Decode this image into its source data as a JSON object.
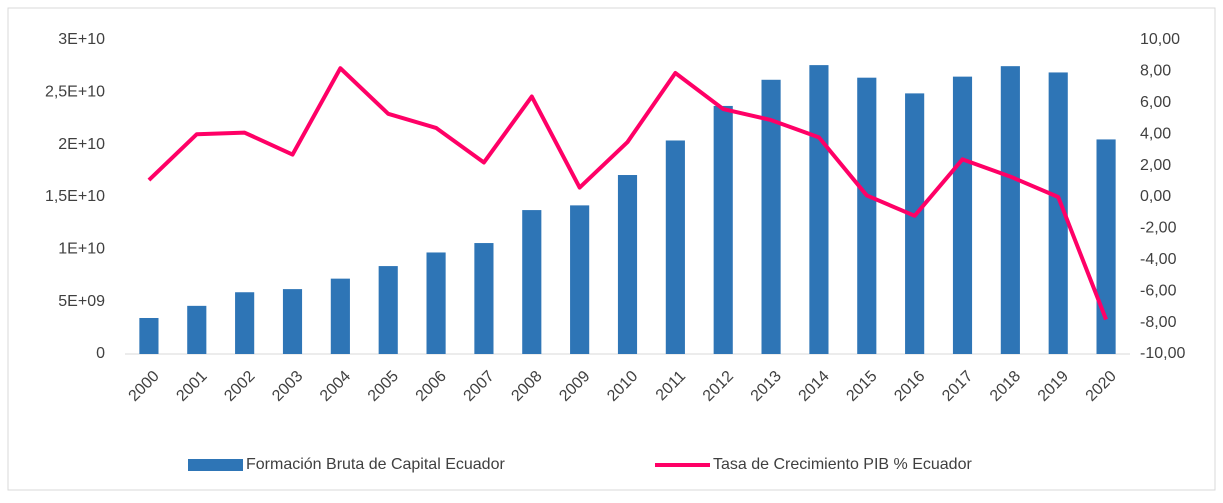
{
  "chart_data": {
    "type": "bar-line",
    "categories": [
      "2000",
      "2001",
      "2002",
      "2003",
      "2004",
      "2005",
      "2006",
      "2007",
      "2008",
      "2009",
      "2010",
      "2011",
      "2012",
      "2013",
      "2014",
      "2015",
      "2016",
      "2017",
      "2018",
      "2019",
      "2020"
    ],
    "series": [
      {
        "name": "Formación Bruta de Capital Ecuador",
        "color": "#2e75b6",
        "type": "bar",
        "values": [
          3440000000,
          4600000000,
          5900000000,
          6200000000,
          7200000000,
          8400000000,
          9700000000,
          10600000000,
          13750000000,
          14200000000,
          17100000000,
          20400000000,
          23700000000,
          26200000000,
          27600000000,
          26400000000,
          24900000000,
          26500000000,
          27500000000,
          26900000000,
          20500000000
        ]
      },
      {
        "name": "Tasa de Crecimiento PIB % Ecuador",
        "color": "#ff0066",
        "type": "line",
        "axis": "y2",
        "values": [
          1.08,
          4.0,
          4.1,
          2.7,
          8.2,
          5.3,
          4.4,
          2.2,
          6.4,
          0.6,
          3.5,
          7.9,
          5.6,
          4.9,
          3.8,
          0.1,
          -1.2,
          2.4,
          1.3,
          0.0,
          -7.8
        ]
      }
    ],
    "ylim": [
      0,
      30000000000
    ],
    "yticks": [
      0,
      {
        "value": 5000000000,
        "label": "5E+09"
      },
      {
        "value": 10000000000,
        "label": "1E+10"
      },
      {
        "value": 15000000000,
        "label": "1,5E+10"
      },
      {
        "value": 20000000000,
        "label": "2E+10"
      },
      {
        "value": 25000000000,
        "label": "2,5E+10"
      },
      {
        "value": 30000000000,
        "label": "3E+10"
      }
    ],
    "y2lim": [
      -10,
      10
    ],
    "y2ticks": [
      {
        "value": -10,
        "label": "-10,00"
      },
      {
        "value": -8,
        "label": "-8,00"
      },
      {
        "value": -6,
        "label": "-6,00"
      },
      {
        "value": -4,
        "label": "-4,00"
      },
      {
        "value": -2,
        "label": "-2,00"
      },
      {
        "value": 0,
        "label": "0,00"
      },
      {
        "value": 2,
        "label": "2,00"
      },
      {
        "value": 4,
        "label": "4,00"
      },
      {
        "value": 6,
        "label": "6,00"
      },
      {
        "value": 8,
        "label": "8,00"
      },
      {
        "value": 10,
        "label": "10,00"
      }
    ],
    "legend": "bottom"
  }
}
